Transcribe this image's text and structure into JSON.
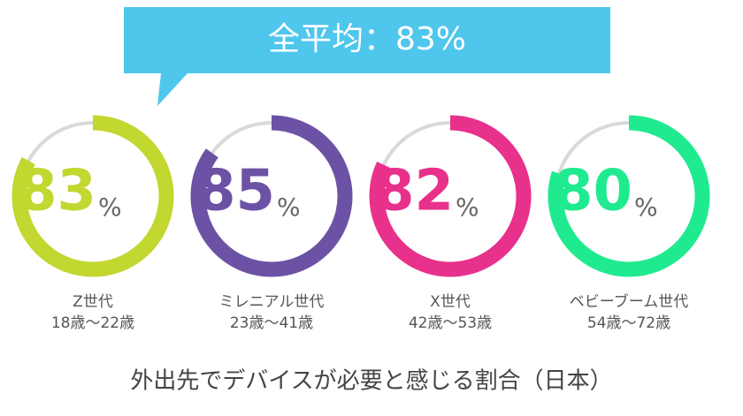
{
  "chart_data": {
    "type": "gauge",
    "annotation": "全平均：83%",
    "title": "外出先でデバイスが必要と感じる割合（日本）",
    "categories": [
      "Z世代",
      "ミレニアル世代",
      "X世代",
      "ベビーブーム世代"
    ],
    "age_ranges": [
      "18歳～22歳",
      "23歳～41歳",
      "42歳～53歳",
      "54歳～72歳"
    ],
    "values": [
      83,
      85,
      82,
      80
    ],
    "unit": "%",
    "colors": [
      "#c2d72f",
      "#6c52a4",
      "#e8318b",
      "#20ea90"
    ],
    "ylim": [
      0,
      100
    ]
  }
}
